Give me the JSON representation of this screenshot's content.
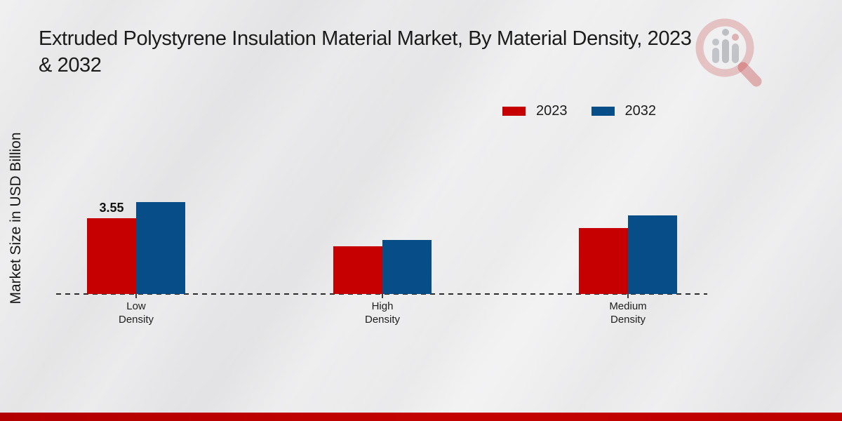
{
  "title": {
    "line1": "Extruded Polystyrene Insulation Material Market, By Material Density, 2023",
    "line2": "& 2032"
  },
  "ylabel": "Market Size in USD Billion",
  "legend": {
    "items": [
      {
        "label": "2023",
        "color": "#c60000"
      },
      {
        "label": "2032",
        "color": "#074e89"
      }
    ]
  },
  "colors": {
    "bar_red": "#c60000",
    "bar_blue": "#074e89",
    "bottom_accent": "#bf0000",
    "baseline": "#2c2c2c",
    "background": "#e9e9ea"
  },
  "watermark": {
    "icon": "magnifier-bar-chart-logo"
  },
  "chart_data": {
    "type": "bar",
    "title": "Extruded Polystyrene Insulation Material Market, By Material Density, 2023 & 2032",
    "xlabel": "",
    "ylabel": "Market Size in USD Billion",
    "categories": [
      "Low Density",
      "High Density",
      "Medium Density"
    ],
    "series": [
      {
        "name": "2023",
        "color": "#c60000",
        "values": [
          3.55,
          2.24,
          3.09
        ],
        "labels": [
          "3.55",
          "",
          ""
        ]
      },
      {
        "name": "2032",
        "color": "#074e89",
        "values": [
          4.31,
          2.53,
          3.68
        ],
        "labels": [
          "",
          "",
          ""
        ]
      }
    ],
    "ylim": [
      0,
      5
    ],
    "grid": false,
    "legend_position": "top-right",
    "baseline_style": "dashed",
    "value_labels_shown": [
      "2023 Low Density: 3.55"
    ]
  }
}
